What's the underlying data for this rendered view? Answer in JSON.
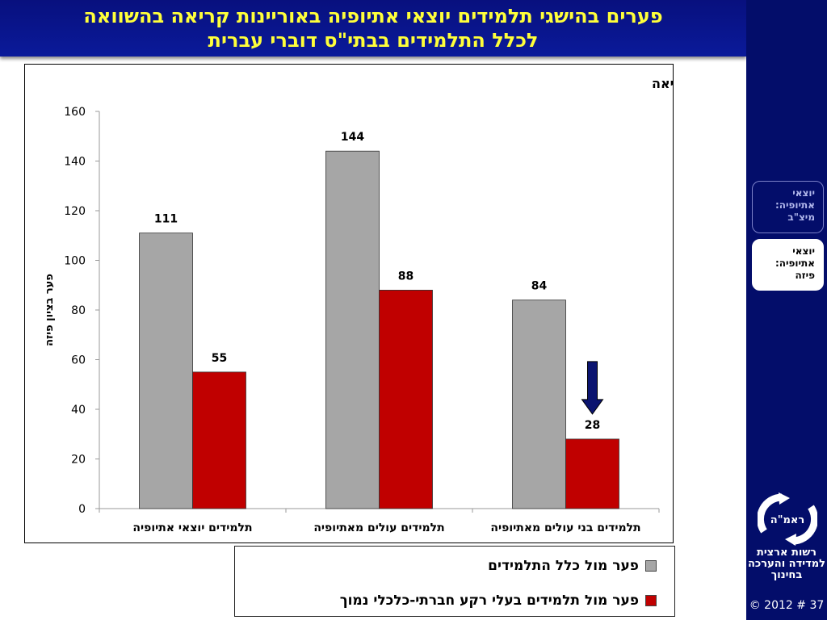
{
  "slide": {
    "title_line1": "פערים בהישגי תלמידים יוצאי אתיופיה באוריינות קריאה בהשוואה",
    "title_line2": "לכלל התלמידים בבתי\"ס דוברי עברית"
  },
  "sidebar": {
    "items": [
      {
        "label": "יוצאי אתיופיה: מיצ\"ב",
        "active": false
      },
      {
        "label": "יוצאי אתיופיה: פיזה",
        "active": true
      }
    ],
    "logo_text": "ראמ\"ה",
    "org_name": "רשות ארצית למדידה והערכה בחינוך",
    "footer": "© 2012 # 37"
  },
  "colors": {
    "title_bg": "#0a1a9a",
    "title_text": "#ffff3a",
    "sidebar_bg": "#030d6a",
    "series_gray": "#a6a6a6",
    "series_red": "#c00000",
    "arrow": "#0b1470"
  },
  "chart_data": {
    "type": "bar",
    "title": "קריאה",
    "ylabel": "פער בציון פיזה",
    "xlabel": "",
    "ylim": [
      0,
      160
    ],
    "yticks": [
      0,
      20,
      40,
      60,
      80,
      100,
      120,
      140,
      160
    ],
    "categories": [
      "תלמידים יוצאי אתיופיה",
      "תלמידים עולים מאתיופיה",
      "תלמידים בני עולים מאתיופיה"
    ],
    "series": [
      {
        "name": "פער מול כלל התלמידים",
        "values": [
          111,
          144,
          84
        ]
      },
      {
        "name": "פער מול תלמידים בעלי רקע חברתי-כלכלי נמוך",
        "values": [
          55,
          88,
          28
        ]
      }
    ],
    "grid": false,
    "legend_position": "bottom",
    "annotation": "down-arrow above the value 28"
  }
}
